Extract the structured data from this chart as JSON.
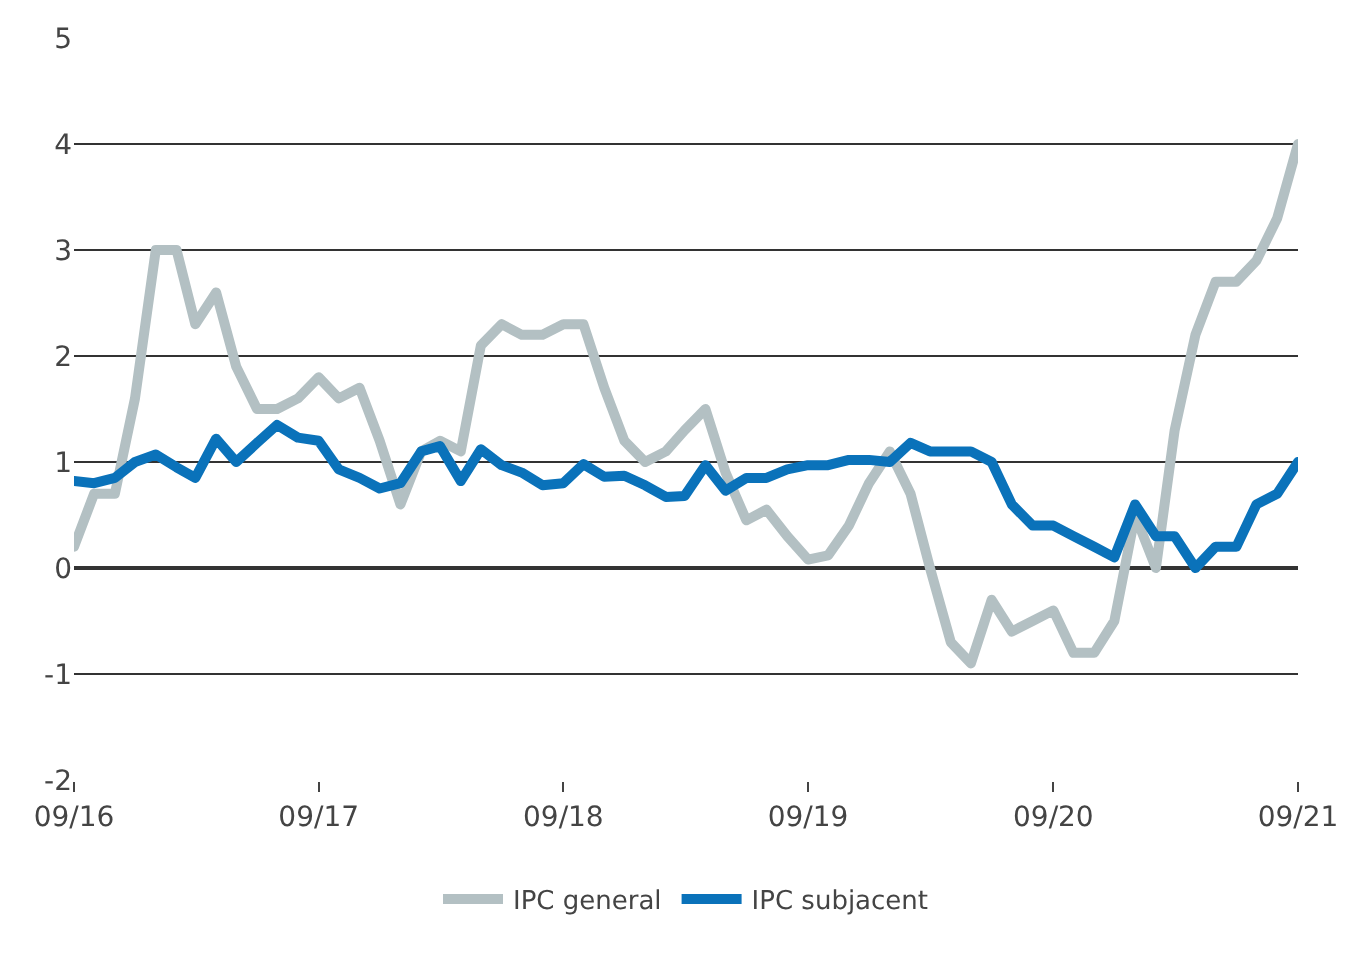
{
  "chart_data": {
    "type": "line",
    "x": [
      "2016-09",
      "2016-10",
      "2016-11",
      "2016-12",
      "2017-01",
      "2017-02",
      "2017-03",
      "2017-04",
      "2017-05",
      "2017-06",
      "2017-07",
      "2017-08",
      "2017-09",
      "2017-10",
      "2017-11",
      "2017-12",
      "2018-01",
      "2018-02",
      "2018-03",
      "2018-04",
      "2018-05",
      "2018-06",
      "2018-07",
      "2018-08",
      "2018-09",
      "2018-10",
      "2018-11",
      "2018-12",
      "2019-01",
      "2019-02",
      "2019-03",
      "2019-04",
      "2019-05",
      "2019-06",
      "2019-07",
      "2019-08",
      "2019-09",
      "2019-10",
      "2019-11",
      "2019-12",
      "2020-01",
      "2020-02",
      "2020-03",
      "2020-04",
      "2020-05",
      "2020-06",
      "2020-07",
      "2020-08",
      "2020-09",
      "2020-10",
      "2020-11",
      "2020-12",
      "2021-01",
      "2021-02",
      "2021-03",
      "2021-04",
      "2021-05",
      "2021-06",
      "2021-07",
      "2021-08",
      "2021-09"
    ],
    "series": [
      {
        "name": "IPC general",
        "color": "#b3c0c3",
        "values": [
          0.2,
          0.7,
          0.7,
          1.6,
          3.0,
          3.0,
          2.3,
          2.6,
          1.9,
          1.5,
          1.5,
          1.6,
          1.8,
          1.6,
          1.7,
          1.2,
          0.6,
          1.1,
          1.2,
          1.1,
          2.1,
          2.3,
          2.2,
          2.2,
          2.3,
          2.3,
          1.7,
          1.2,
          1.0,
          1.1,
          1.3,
          1.5,
          0.9,
          0.45,
          0.55,
          0.3,
          0.08,
          0.12,
          0.4,
          0.8,
          1.1,
          0.7,
          0.0,
          -0.7,
          -0.9,
          -0.3,
          -0.6,
          -0.5,
          -0.4,
          -0.8,
          -0.8,
          -0.5,
          0.5,
          0.0,
          1.3,
          2.2,
          2.7,
          2.7,
          2.9,
          3.3,
          4.0
        ]
      },
      {
        "name": "IPC subjacent",
        "color": "#0a72ba",
        "values": [
          0.82,
          0.8,
          0.85,
          1.0,
          1.07,
          0.95,
          0.85,
          1.22,
          1.0,
          1.18,
          1.35,
          1.23,
          1.2,
          0.93,
          0.85,
          0.75,
          0.8,
          1.1,
          1.15,
          0.82,
          1.12,
          0.97,
          0.9,
          0.78,
          0.8,
          0.98,
          0.86,
          0.87,
          0.78,
          0.67,
          0.68,
          0.97,
          0.73,
          0.85,
          0.85,
          0.93,
          0.97,
          0.97,
          1.02,
          1.02,
          1.0,
          1.18,
          1.1,
          1.1,
          1.1,
          1.0,
          0.6,
          0.4,
          0.4,
          0.3,
          0.2,
          0.1,
          0.6,
          0.3,
          0.3,
          0.0,
          0.2,
          0.2,
          0.6,
          0.7,
          1.0
        ]
      }
    ],
    "xlim": [
      "2016-09",
      "2021-09"
    ],
    "xticks": [
      {
        "value": "2016-09",
        "label": "09/16"
      },
      {
        "value": "2017-09",
        "label": "09/17"
      },
      {
        "value": "2018-09",
        "label": "09/18"
      },
      {
        "value": "2019-09",
        "label": "09/19"
      },
      {
        "value": "2020-09",
        "label": "09/20"
      },
      {
        "value": "2021-09",
        "label": "09/21"
      }
    ],
    "ylim": [
      -2,
      5
    ],
    "yticks": [
      -2,
      -1,
      0,
      1,
      2,
      3,
      4,
      5
    ],
    "grid": "y",
    "legend": "bottom",
    "marker": "none",
    "line_style": "solid"
  }
}
